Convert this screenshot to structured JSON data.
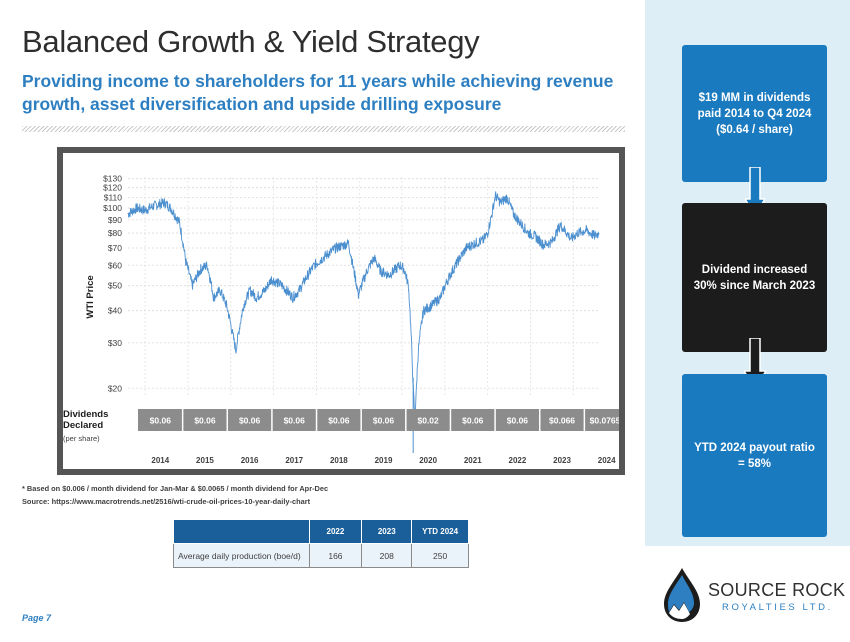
{
  "slide": {
    "title": "Balanced Growth & Yield Strategy",
    "subtitle": "Providing income to shareholders for 11 years while achieving revenue growth, asset diversification and upside drilling exposure",
    "page": "Page 7"
  },
  "chart_data": {
    "type": "line",
    "ylabel": "WTI Price",
    "y_scale": "log",
    "ylim": [
      18.5,
      132
    ],
    "y_ticks": [
      "$130",
      "$120",
      "$110",
      "$100",
      "$90",
      "$80",
      "$70",
      "$60",
      "$50",
      "$40",
      "$30",
      "$20"
    ],
    "y_tick_values": [
      130,
      120,
      110,
      100,
      90,
      80,
      70,
      60,
      50,
      40,
      30,
      20
    ],
    "x_labels": [
      "2014",
      "2015",
      "2016",
      "2017",
      "2018",
      "2019",
      "2020",
      "2021",
      "2022",
      "2023",
      "2024"
    ],
    "xlim": [
      2013.6,
      2024.6
    ],
    "series": [
      {
        "name": "WTI Price",
        "color": "#4b8fcf",
        "x": [
          2013.6,
          2013.8,
          2014.0,
          2014.2,
          2014.45,
          2014.6,
          2014.8,
          2014.95,
          2015.1,
          2015.3,
          2015.45,
          2015.6,
          2015.75,
          2015.9,
          2016.05,
          2016.12,
          2016.3,
          2016.45,
          2016.6,
          2016.8,
          2016.95,
          2017.2,
          2017.45,
          2017.6,
          2017.8,
          2017.95,
          2018.2,
          2018.45,
          2018.75,
          2018.85,
          2018.98,
          2019.2,
          2019.35,
          2019.5,
          2019.7,
          2019.95,
          2020.05,
          2020.15,
          2020.22,
          2020.26,
          2020.3,
          2020.33,
          2020.38,
          2020.5,
          2020.7,
          2020.9,
          2021.05,
          2021.3,
          2021.5,
          2021.7,
          2021.9,
          2022.0,
          2022.1,
          2022.18,
          2022.3,
          2022.45,
          2022.6,
          2022.75,
          2022.95,
          2023.1,
          2023.3,
          2023.5,
          2023.7,
          2023.95,
          2024.1,
          2024.3,
          2024.5,
          2024.6
        ],
        "values": [
          95,
          100,
          98,
          102,
          105,
          100,
          88,
          62,
          50,
          58,
          60,
          45,
          48,
          42,
          32,
          28,
          42,
          48,
          45,
          48,
          53,
          50,
          45,
          48,
          55,
          60,
          65,
          70,
          73,
          60,
          46,
          58,
          64,
          57,
          55,
          60,
          58,
          50,
          30,
          20,
          15,
          19,
          28,
          40,
          42,
          45,
          52,
          62,
          70,
          73,
          75,
          80,
          95,
          112,
          105,
          110,
          95,
          88,
          80,
          78,
          72,
          74,
          86,
          76,
          80,
          82,
          78,
          80
        ]
      }
    ]
  },
  "dividends": {
    "label_main": "Dividends Declared",
    "label_sub": "(per share)",
    "values": [
      "$0.06",
      "$0.06",
      "$0.06",
      "$0.06",
      "$0.06",
      "$0.06",
      "$0.02",
      "$0.06",
      "$0.06",
      "$0.066",
      "$0.0765*"
    ]
  },
  "footnotes": {
    "asterisk": "* Based on $0.006 / month dividend for Jan-Mar & $0.0065 / month dividend for Apr-Dec",
    "source": "Source: https://www.macrotrends.net/2516/wti-crude-oil-prices-10-year-daily-chart"
  },
  "production_table": {
    "headers": [
      "",
      "2022",
      "2023",
      "YTD 2024"
    ],
    "row_label": "Average daily production (boe/d)",
    "values": [
      "166",
      "208",
      "250"
    ]
  },
  "sidebar": {
    "box1": "$19 MM in dividends paid 2014 to Q4 2024 ($0.64 / share)",
    "box2": "Dividend increased 30% since March 2023",
    "box3": "YTD 2024 payout ratio = 58%"
  },
  "logo": {
    "name": "SOURCE ROCK",
    "suffix": "ROYALTIES LTD."
  },
  "colors": {
    "accent": "#2d7fc1",
    "dark_blue": "#1a5f99",
    "panel": "#ddeef7",
    "box_dark": "#1c1c1c",
    "div_bar": "#8c8c8c"
  }
}
